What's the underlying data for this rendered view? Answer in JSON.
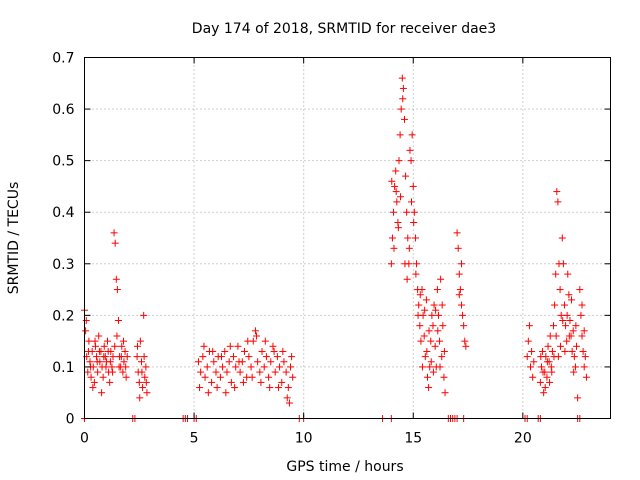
{
  "chart_data": {
    "type": "scatter",
    "title": "Day 174 of 2018, SRMTID for receiver dae3",
    "xlabel": "GPS time / hours",
    "ylabel": "SRMTID / TECUs",
    "xlim": [
      0,
      24
    ],
    "ylim": [
      0,
      0.7
    ],
    "xticks": [
      0,
      5,
      10,
      15,
      20
    ],
    "xtick_labels": [
      "0",
      "5",
      "10",
      "15",
      "20"
    ],
    "yticks": [
      0,
      0.1,
      0.2,
      0.3,
      0.4,
      0.5,
      0.6,
      0.7
    ],
    "ytick_labels": [
      "0",
      "0.1",
      "0.2",
      "0.3",
      "0.4",
      "0.5",
      "0.6",
      "0.7"
    ],
    "grid": true,
    "marker": "+",
    "color": "#ff0000",
    "series": [
      {
        "name": "SRMTID",
        "points": [
          [
            0.0,
            0.21
          ],
          [
            0.05,
            0.17
          ],
          [
            0.1,
            0.12
          ],
          [
            0.15,
            0.09
          ],
          [
            0.2,
            0.15
          ],
          [
            0.25,
            0.11
          ],
          [
            0.3,
            0.08
          ],
          [
            0.35,
            0.13
          ],
          [
            0.4,
            0.1
          ],
          [
            0.45,
            0.07
          ],
          [
            0.5,
            0.14
          ],
          [
            0.55,
            0.12
          ],
          [
            0.6,
            0.09
          ],
          [
            0.65,
            0.16
          ],
          [
            0.7,
            0.11
          ],
          [
            0.75,
            0.13
          ],
          [
            0.8,
            0.1
          ],
          [
            0.85,
            0.08
          ],
          [
            0.9,
            0.14
          ],
          [
            0.95,
            0.12
          ],
          [
            1.0,
            0.11
          ],
          [
            1.05,
            0.15
          ],
          [
            1.1,
            0.09
          ],
          [
            1.15,
            0.07
          ],
          [
            1.2,
            0.13
          ],
          [
            1.25,
            0.1
          ],
          [
            1.3,
            0.12
          ],
          [
            1.35,
            0.36
          ],
          [
            1.4,
            0.34
          ],
          [
            1.45,
            0.27
          ],
          [
            1.5,
            0.25
          ],
          [
            1.55,
            0.19
          ],
          [
            1.6,
            0.12
          ],
          [
            1.65,
            0.1
          ],
          [
            1.7,
            0.14
          ],
          [
            1.75,
            0.09
          ],
          [
            1.8,
            0.11
          ],
          [
            1.85,
            0.13
          ],
          [
            1.9,
            0.08
          ],
          [
            1.95,
            0.12
          ],
          [
            0.08,
            0.19
          ],
          [
            0.18,
            0.13
          ],
          [
            0.28,
            0.1
          ],
          [
            0.38,
            0.06
          ],
          [
            0.48,
            0.15
          ],
          [
            0.58,
            0.11
          ],
          [
            0.68,
            0.13
          ],
          [
            0.78,
            0.05
          ],
          [
            0.88,
            0.12
          ],
          [
            0.98,
            0.1
          ],
          [
            1.08,
            0.13
          ],
          [
            1.18,
            0.11
          ],
          [
            1.28,
            0.09
          ],
          [
            1.38,
            0.14
          ],
          [
            1.48,
            0.16
          ],
          [
            1.58,
            0.1
          ],
          [
            1.68,
            0.12
          ],
          [
            1.78,
            0.15
          ],
          [
            1.88,
            0.1
          ],
          [
            2.4,
            0.12
          ],
          [
            2.45,
            0.09
          ],
          [
            2.5,
            0.07
          ],
          [
            2.55,
            0.15
          ],
          [
            2.6,
            0.11
          ],
          [
            2.65,
            0.06
          ],
          [
            2.7,
            0.2
          ],
          [
            2.75,
            0.08
          ],
          [
            2.8,
            0.1
          ],
          [
            2.85,
            0.05
          ],
          [
            2.42,
            0.14
          ],
          [
            2.52,
            0.04
          ],
          [
            2.62,
            0.09
          ],
          [
            2.72,
            0.12
          ],
          [
            2.82,
            0.07
          ],
          [
            5.2,
            0.11
          ],
          [
            5.3,
            0.09
          ],
          [
            5.4,
            0.12
          ],
          [
            5.5,
            0.08
          ],
          [
            5.6,
            0.1
          ],
          [
            5.7,
            0.13
          ],
          [
            5.8,
            0.07
          ],
          [
            5.9,
            0.11
          ],
          [
            6.0,
            0.09
          ],
          [
            6.1,
            0.12
          ],
          [
            6.2,
            0.08
          ],
          [
            6.3,
            0.1
          ],
          [
            6.4,
            0.13
          ],
          [
            6.5,
            0.09
          ],
          [
            6.6,
            0.11
          ],
          [
            6.7,
            0.07
          ],
          [
            6.8,
            0.12
          ],
          [
            6.9,
            0.1
          ],
          [
            7.0,
            0.14
          ],
          [
            7.1,
            0.09
          ],
          [
            7.2,
            0.11
          ],
          [
            7.3,
            0.13
          ],
          [
            7.4,
            0.08
          ],
          [
            7.5,
            0.12
          ],
          [
            7.6,
            0.1
          ],
          [
            7.7,
            0.15
          ],
          [
            7.8,
            0.17
          ],
          [
            7.9,
            0.11
          ],
          [
            8.0,
            0.09
          ],
          [
            8.1,
            0.13
          ],
          [
            8.2,
            0.1
          ],
          [
            8.3,
            0.12
          ],
          [
            8.4,
            0.08
          ],
          [
            8.5,
            0.11
          ],
          [
            8.6,
            0.14
          ],
          [
            8.7,
            0.09
          ],
          [
            8.8,
            0.12
          ],
          [
            8.9,
            0.1
          ],
          [
            9.0,
            0.07
          ],
          [
            9.1,
            0.11
          ],
          [
            9.2,
            0.09
          ],
          [
            9.3,
            0.06
          ],
          [
            9.4,
            0.1
          ],
          [
            9.5,
            0.08
          ],
          [
            5.25,
            0.06
          ],
          [
            5.45,
            0.14
          ],
          [
            5.65,
            0.05
          ],
          [
            5.85,
            0.13
          ],
          [
            6.05,
            0.06
          ],
          [
            6.25,
            0.12
          ],
          [
            6.45,
            0.05
          ],
          [
            6.65,
            0.14
          ],
          [
            6.85,
            0.06
          ],
          [
            7.05,
            0.11
          ],
          [
            7.25,
            0.07
          ],
          [
            7.45,
            0.15
          ],
          [
            7.65,
            0.08
          ],
          [
            7.85,
            0.16
          ],
          [
            8.05,
            0.07
          ],
          [
            8.25,
            0.15
          ],
          [
            8.45,
            0.06
          ],
          [
            8.65,
            0.13
          ],
          [
            8.85,
            0.06
          ],
          [
            9.05,
            0.13
          ],
          [
            9.25,
            0.04
          ],
          [
            9.45,
            0.12
          ],
          [
            9.35,
            0.03
          ],
          [
            14.0,
            0.3
          ],
          [
            14.05,
            0.35
          ],
          [
            14.1,
            0.4
          ],
          [
            14.15,
            0.45
          ],
          [
            14.2,
            0.48
          ],
          [
            14.25,
            0.42
          ],
          [
            14.3,
            0.38
          ],
          [
            14.35,
            0.5
          ],
          [
            14.4,
            0.55
          ],
          [
            14.45,
            0.6
          ],
          [
            14.5,
            0.66
          ],
          [
            14.55,
            0.64
          ],
          [
            14.6,
            0.58
          ],
          [
            14.65,
            0.47
          ],
          [
            14.7,
            0.4
          ],
          [
            14.75,
            0.35
          ],
          [
            14.8,
            0.3
          ],
          [
            14.85,
            0.52
          ],
          [
            14.9,
            0.5
          ],
          [
            14.95,
            0.55
          ],
          [
            15.0,
            0.45
          ],
          [
            15.05,
            0.4
          ],
          [
            15.1,
            0.35
          ],
          [
            15.15,
            0.3
          ],
          [
            15.2,
            0.25
          ],
          [
            15.25,
            0.22
          ],
          [
            15.3,
            0.18
          ],
          [
            15.35,
            0.15
          ],
          [
            15.4,
            0.25
          ],
          [
            15.45,
            0.2
          ],
          [
            15.5,
            0.16
          ],
          [
            15.55,
            0.12
          ],
          [
            15.6,
            0.23
          ],
          [
            15.65,
            0.08
          ],
          [
            15.7,
            0.06
          ],
          [
            15.75,
            0.1
          ],
          [
            15.8,
            0.15
          ],
          [
            15.85,
            0.2
          ],
          [
            15.9,
            0.18
          ],
          [
            15.95,
            0.22
          ],
          [
            16.0,
            0.14
          ],
          [
            16.05,
            0.1
          ],
          [
            16.1,
            0.25
          ],
          [
            16.15,
            0.2
          ],
          [
            16.2,
            0.15
          ],
          [
            16.25,
            0.27
          ],
          [
            16.3,
            0.12
          ],
          [
            16.35,
            0.18
          ],
          [
            16.4,
            0.08
          ],
          [
            16.45,
            0.05
          ],
          [
            14.02,
            0.46
          ],
          [
            14.12,
            0.33
          ],
          [
            14.22,
            0.44
          ],
          [
            14.32,
            0.37
          ],
          [
            14.42,
            0.43
          ],
          [
            14.52,
            0.62
          ],
          [
            14.62,
            0.3
          ],
          [
            14.72,
            0.27
          ],
          [
            14.82,
            0.33
          ],
          [
            14.92,
            0.42
          ],
          [
            15.02,
            0.38
          ],
          [
            15.12,
            0.28
          ],
          [
            15.22,
            0.2
          ],
          [
            15.32,
            0.24
          ],
          [
            15.42,
            0.1
          ],
          [
            15.52,
            0.21
          ],
          [
            15.62,
            0.13
          ],
          [
            15.72,
            0.17
          ],
          [
            15.82,
            0.11
          ],
          [
            15.92,
            0.09
          ],
          [
            16.02,
            0.21
          ],
          [
            16.12,
            0.17
          ],
          [
            16.22,
            0.1
          ],
          [
            16.32,
            0.22
          ],
          [
            16.42,
            0.13
          ],
          [
            17.0,
            0.36
          ],
          [
            17.05,
            0.33
          ],
          [
            17.1,
            0.28
          ],
          [
            17.15,
            0.25
          ],
          [
            17.2,
            0.22
          ],
          [
            17.25,
            0.2
          ],
          [
            17.3,
            0.18
          ],
          [
            17.35,
            0.15
          ],
          [
            17.4,
            0.14
          ],
          [
            17.1,
            0.24
          ],
          [
            17.2,
            0.3
          ],
          [
            20.2,
            0.12
          ],
          [
            20.25,
            0.15
          ],
          [
            20.3,
            0.18
          ],
          [
            20.35,
            0.1
          ],
          [
            20.4,
            0.13
          ],
          [
            20.45,
            0.08
          ],
          [
            20.5,
            0.11
          ],
          [
            20.8,
            0.07
          ],
          [
            20.85,
            0.1
          ],
          [
            20.9,
            0.13
          ],
          [
            20.95,
            0.05
          ],
          [
            21.0,
            0.09
          ],
          [
            21.05,
            0.12
          ],
          [
            21.1,
            0.08
          ],
          [
            21.15,
            0.14
          ],
          [
            21.2,
            0.11
          ],
          [
            21.25,
            0.16
          ],
          [
            21.3,
            0.1
          ],
          [
            21.35,
            0.13
          ],
          [
            21.4,
            0.18
          ],
          [
            21.45,
            0.22
          ],
          [
            21.5,
            0.28
          ],
          [
            21.55,
            0.44
          ],
          [
            21.6,
            0.42
          ],
          [
            21.65,
            0.3
          ],
          [
            21.7,
            0.25
          ],
          [
            21.75,
            0.2
          ],
          [
            21.8,
            0.35
          ],
          [
            21.85,
            0.3
          ],
          [
            21.9,
            0.22
          ],
          [
            21.95,
            0.18
          ],
          [
            22.0,
            0.15
          ],
          [
            22.05,
            0.28
          ],
          [
            22.1,
            0.24
          ],
          [
            22.15,
            0.19
          ],
          [
            22.2,
            0.16
          ],
          [
            22.25,
            0.13
          ],
          [
            22.3,
            0.17
          ],
          [
            22.35,
            0.12
          ],
          [
            22.4,
            0.1
          ],
          [
            22.45,
            0.14
          ],
          [
            22.5,
            0.04
          ],
          [
            22.6,
            0.25
          ],
          [
            22.65,
            0.2
          ],
          [
            22.7,
            0.16
          ],
          [
            22.75,
            0.13
          ],
          [
            22.8,
            0.1
          ],
          [
            22.85,
            0.12
          ],
          [
            22.9,
            0.08
          ],
          [
            22.7,
            0.22
          ],
          [
            22.8,
            0.17
          ],
          [
            20.82,
            0.12
          ],
          [
            20.92,
            0.09
          ],
          [
            21.02,
            0.06
          ],
          [
            21.12,
            0.11
          ],
          [
            21.22,
            0.07
          ],
          [
            21.32,
            0.09
          ],
          [
            21.42,
            0.12
          ],
          [
            21.52,
            0.16
          ],
          [
            21.62,
            0.12
          ],
          [
            21.72,
            0.14
          ],
          [
            21.82,
            0.19
          ],
          [
            21.92,
            0.13
          ],
          [
            22.02,
            0.2
          ],
          [
            22.12,
            0.16
          ],
          [
            22.22,
            0.23
          ],
          [
            22.32,
            0.09
          ],
          [
            22.42,
            0.18
          ]
        ]
      }
    ],
    "zero_markers_x": [
      0.0,
      2.2,
      2.3,
      4.5,
      4.6,
      4.7,
      5.0,
      5.1,
      9.8,
      10.0,
      13.6,
      14.0,
      16.6,
      16.7,
      16.8,
      16.9,
      17.0,
      17.3,
      20.1,
      20.2,
      20.7,
      20.8,
      22.5,
      22.6
    ]
  }
}
